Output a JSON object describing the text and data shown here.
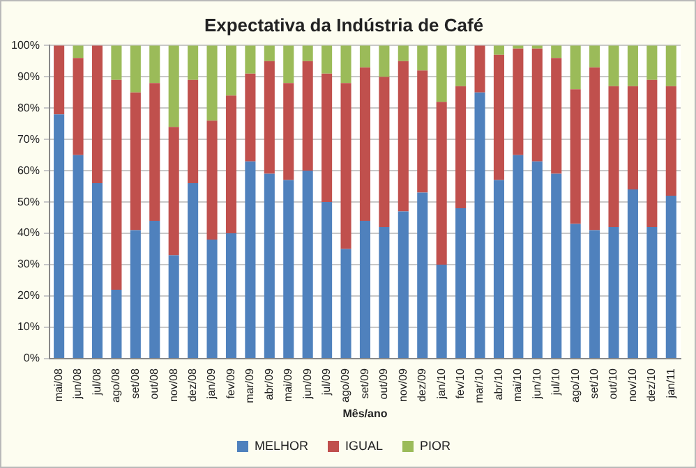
{
  "chart_data": {
    "type": "bar",
    "stacked": true,
    "title": "Expectativa da Indústria de Café",
    "xlabel": "Mês/ano",
    "categories": [
      "mai/08",
      "jun/08",
      "jul/08",
      "ago/08",
      "set/08",
      "out/08",
      "nov/08",
      "dez/08",
      "jan/09",
      "fev/09",
      "mar/09",
      "abr/09",
      "mai/09",
      "jun/09",
      "jul/09",
      "ago/09",
      "set/09",
      "out/09",
      "nov/09",
      "dez/09",
      "jan/10",
      "fev/10",
      "mar/10",
      "abr/10",
      "mai/10",
      "jun/10",
      "jul/10",
      "ago/10",
      "set/10",
      "out/10",
      "nov/10",
      "dez/10",
      "jan/11"
    ],
    "series": [
      {
        "name": "MELHOR",
        "color": "#4f81bd",
        "values": [
          78,
          65,
          56,
          22,
          41,
          44,
          33,
          56,
          38,
          40,
          63,
          59,
          57,
          60,
          50,
          35,
          44,
          42,
          47,
          53,
          30,
          48,
          85,
          57,
          65,
          63,
          59,
          43,
          41,
          42,
          54,
          42,
          52
        ]
      },
      {
        "name": "IGUAL",
        "color": "#c0504d",
        "values": [
          22,
          31,
          44,
          67,
          44,
          44,
          41,
          33,
          38,
          44,
          28,
          36,
          31,
          35,
          41,
          53,
          49,
          48,
          48,
          39,
          52,
          39,
          15,
          40,
          34,
          36,
          37,
          43,
          52,
          45,
          33,
          47,
          35
        ]
      },
      {
        "name": "PIOR",
        "color": "#9bbb59",
        "values": [
          0,
          4,
          0,
          11,
          15,
          12,
          26,
          11,
          24,
          16,
          9,
          5,
          12,
          5,
          9,
          12,
          7,
          10,
          5,
          8,
          18,
          13,
          0,
          3,
          1,
          1,
          4,
          14,
          7,
          13,
          13,
          11,
          13
        ]
      }
    ],
    "ylim": [
      0,
      100
    ],
    "yticks": [
      {
        "value": 0,
        "label": "0%"
      },
      {
        "value": 10,
        "label": "10%"
      },
      {
        "value": 20,
        "label": "20%"
      },
      {
        "value": 30,
        "label": "30%"
      },
      {
        "value": 40,
        "label": "40%"
      },
      {
        "value": 50,
        "label": "50%"
      },
      {
        "value": 60,
        "label": "60%"
      },
      {
        "value": 70,
        "label": "70%"
      },
      {
        "value": 80,
        "label": "80%"
      },
      {
        "value": 90,
        "label": "90%"
      },
      {
        "value": 100,
        "label": "100%"
      }
    ],
    "grid": "y",
    "legend": "bottom"
  }
}
